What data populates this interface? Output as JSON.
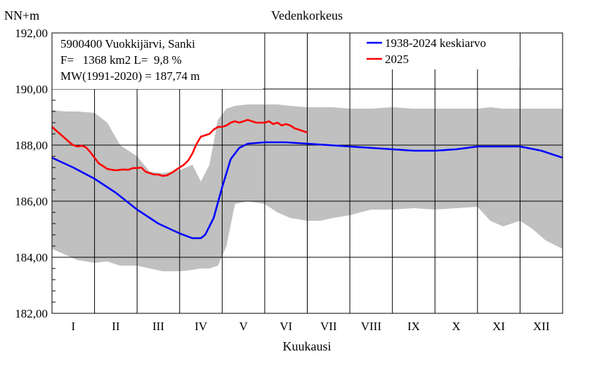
{
  "chart_data": {
    "type": "line",
    "title": "Vedenkorkeus",
    "ylabel": "NN+m",
    "xlabel": "Kuukausi",
    "ylim": [
      182,
      192
    ],
    "yticks": [
      "182,00",
      "184,00",
      "186,00",
      "188,00",
      "190,00",
      "192,00"
    ],
    "ytick_values": [
      182,
      184,
      186,
      188,
      190,
      192
    ],
    "xlim": [
      0,
      12
    ],
    "categories": [
      "I",
      "II",
      "III",
      "IV",
      "V",
      "VI",
      "VII",
      "VIII",
      "IX",
      "X",
      "XI",
      "XII"
    ],
    "grid": true,
    "legend_position": "top-right",
    "info_lines": [
      "5900400 Vuokkijärvi, Sanki",
      "F=   1368 km2 L=  9,8 %",
      "MW(1991-2020) = 187,74 m"
    ],
    "band": {
      "fill": "#c0c0c0",
      "x": [
        0,
        0.3,
        0.6,
        1.0,
        1.3,
        1.6,
        2.0,
        2.3,
        2.6,
        3.0,
        3.3,
        3.5,
        3.7,
        3.9,
        4.1,
        4.3,
        4.6,
        5.0,
        5.3,
        5.6,
        6.0,
        6.3,
        6.6,
        7.0,
        7.5,
        8.0,
        8.5,
        9.0,
        9.5,
        10.0,
        10.3,
        10.6,
        11.0,
        11.3,
        11.6,
        12.0
      ],
      "upper": [
        189.25,
        189.2,
        189.2,
        189.15,
        188.8,
        188.0,
        187.6,
        187.05,
        187.0,
        187.1,
        187.3,
        186.7,
        187.3,
        188.9,
        189.3,
        189.4,
        189.45,
        189.45,
        189.45,
        189.4,
        189.35,
        189.35,
        189.35,
        189.3,
        189.3,
        189.35,
        189.3,
        189.3,
        189.3,
        189.3,
        189.35,
        189.3,
        189.3,
        189.3,
        189.3,
        189.3
      ],
      "lower": [
        184.3,
        184.1,
        183.9,
        183.8,
        183.85,
        183.7,
        183.7,
        183.6,
        183.5,
        183.5,
        183.55,
        183.6,
        183.6,
        183.7,
        184.4,
        185.9,
        186.0,
        185.9,
        185.6,
        185.4,
        185.3,
        185.3,
        185.4,
        185.5,
        185.7,
        185.7,
        185.75,
        185.7,
        185.75,
        185.8,
        185.3,
        185.1,
        185.3,
        185.0,
        184.6,
        184.3
      ]
    },
    "series": [
      {
        "name": "1938-2024 keskiarvo",
        "color": "#0000ff",
        "x": [
          0,
          0.5,
          1.0,
          1.5,
          2.0,
          2.5,
          3.0,
          3.3,
          3.5,
          3.6,
          3.8,
          4.0,
          4.2,
          4.4,
          4.6,
          5.0,
          5.5,
          6.0,
          6.5,
          7.0,
          7.5,
          8.0,
          8.5,
          9.0,
          9.5,
          10.0,
          10.5,
          11.0,
          11.5,
          12.0
        ],
        "y": [
          187.55,
          187.2,
          186.8,
          186.3,
          185.7,
          185.2,
          184.85,
          184.68,
          184.68,
          184.8,
          185.4,
          186.5,
          187.5,
          187.9,
          188.05,
          188.1,
          188.1,
          188.05,
          188.0,
          187.95,
          187.9,
          187.85,
          187.8,
          187.8,
          187.85,
          187.95,
          187.95,
          187.95,
          187.8,
          187.55
        ]
      },
      {
        "name": "2025",
        "color": "#ff0000",
        "x": [
          0,
          0.15,
          0.3,
          0.45,
          0.5,
          0.6,
          0.7,
          0.8,
          0.9,
          1.0,
          1.1,
          1.2,
          1.3,
          1.4,
          1.5,
          1.6,
          1.7,
          1.8,
          1.9,
          2.0,
          2.1,
          2.2,
          2.3,
          2.4,
          2.5,
          2.6,
          2.7,
          2.8,
          2.9,
          3.0,
          3.1,
          3.2,
          3.3,
          3.4,
          3.5,
          3.6,
          3.7,
          3.8,
          3.9,
          4.0,
          4.1,
          4.2,
          4.3,
          4.4,
          4.5,
          4.6,
          4.7,
          4.8,
          4.9,
          5.0,
          5.1,
          5.2,
          5.3,
          5.4,
          5.5,
          5.6,
          5.7,
          5.8,
          5.9,
          6.0
        ],
        "y": [
          188.65,
          188.45,
          188.25,
          188.05,
          188.0,
          187.95,
          187.98,
          187.92,
          187.75,
          187.55,
          187.35,
          187.25,
          187.15,
          187.12,
          187.1,
          187.12,
          187.13,
          187.12,
          187.18,
          187.18,
          187.2,
          187.05,
          187.0,
          186.95,
          186.95,
          186.9,
          186.92,
          187.0,
          187.1,
          187.2,
          187.3,
          187.45,
          187.7,
          188.05,
          188.3,
          188.35,
          188.4,
          188.55,
          188.65,
          188.65,
          188.7,
          188.8,
          188.85,
          188.8,
          188.85,
          188.9,
          188.85,
          188.8,
          188.8,
          188.8,
          188.85,
          188.75,
          188.8,
          188.7,
          188.75,
          188.7,
          188.6,
          188.55,
          188.5,
          188.45
        ]
      }
    ]
  }
}
